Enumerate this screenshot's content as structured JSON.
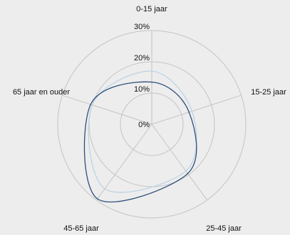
{
  "chart_data": {
    "type": "radar",
    "title": "",
    "categories": [
      "0-15 jaar",
      "15-25 jaar",
      "25-45 jaar",
      "45-65 jaar",
      "65 jaar en ouder"
    ],
    "rlim": [
      0,
      30
    ],
    "ticks": [
      {
        "value": 0,
        "label": "0%"
      },
      {
        "value": 10,
        "label": "10%"
      },
      {
        "value": 20,
        "label": "20%"
      },
      {
        "value": 30,
        "label": "30%"
      }
    ],
    "grid": true,
    "legend": "none",
    "series": [
      {
        "color": "#2e4f7a",
        "values": [
          13.5,
          12.5,
          19.5,
          29.5,
          20.5
        ]
      },
      {
        "color": "#b8d2e6",
        "values": [
          17.0,
          13.5,
          18.5,
          25.5,
          20.0
        ]
      }
    ]
  },
  "colors": {
    "background": "#ededed",
    "grid": "#c4c4c4",
    "text": "#111111"
  }
}
